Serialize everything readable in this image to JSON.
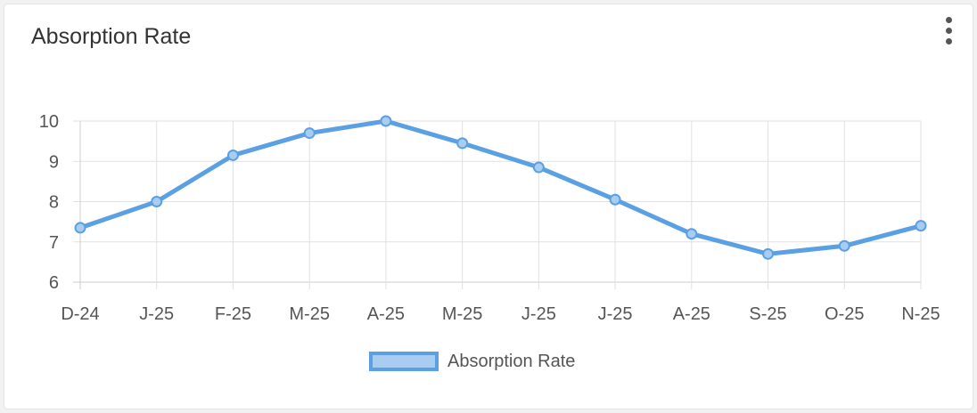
{
  "card": {
    "title": "Absorption Rate",
    "menu_icon": "vertical-ellipsis-icon"
  },
  "chart_data": {
    "type": "line",
    "title": "Absorption Rate",
    "categories": [
      "D-24",
      "J-25",
      "F-25",
      "M-25",
      "A-25",
      "M-25",
      "J-25",
      "J-25",
      "A-25",
      "S-25",
      "O-25",
      "N-25"
    ],
    "series": [
      {
        "name": "Absorption Rate",
        "values": [
          7.35,
          8.0,
          9.15,
          9.7,
          10.0,
          9.45,
          8.85,
          8.05,
          7.2,
          6.7,
          6.9,
          7.4
        ]
      }
    ],
    "xlabel": "",
    "ylabel": "",
    "ylim": [
      6,
      10
    ],
    "yticks": [
      6,
      7,
      8,
      9,
      10
    ],
    "grid": true,
    "legend_position": "bottom",
    "colors": {
      "line": "#5aa0e3",
      "point_fill": "#a9ccf1",
      "grid": "#e1e1e1",
      "axis": "#cccccc"
    }
  },
  "legend": {
    "label": "Absorption Rate"
  }
}
